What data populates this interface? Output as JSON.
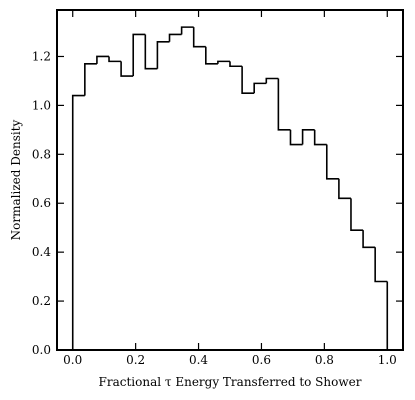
{
  "chart_data": {
    "type": "histogram",
    "xlabel": "Fractional τ Energy Transferred to Shower",
    "ylabel": "Normalized Density",
    "bins": [
      0,
      0.0385,
      0.0769,
      0.1154,
      0.1538,
      0.1923,
      0.2308,
      0.2692,
      0.3077,
      0.3462,
      0.3846,
      0.4231,
      0.4615,
      0.5,
      0.5385,
      0.5769,
      0.6154,
      0.6538,
      0.6923,
      0.7308,
      0.7692,
      0.8077,
      0.8462,
      0.8846,
      0.9231,
      0.9615,
      1
    ],
    "values": [
      1.04,
      1.17,
      1.2,
      1.18,
      1.12,
      1.29,
      1.15,
      1.26,
      1.29,
      1.32,
      1.24,
      1.17,
      1.18,
      1.16,
      1.05,
      1.09,
      1.11,
      0.9,
      0.84,
      0.9,
      0.84,
      0.7,
      0.62,
      0.49,
      0.42,
      0.28
    ],
    "color": "#000000",
    "xlim": [
      -0.05,
      1.05
    ],
    "ylim": [
      0,
      1.39
    ],
    "xticks": [
      {
        "value": 0,
        "label": "0.0"
      },
      0.2,
      0.4,
      0.6,
      0.8,
      {
        "value": 1,
        "label": "1.0"
      }
    ],
    "yticks": [
      {
        "value": 0,
        "label": "0.0"
      },
      0.2,
      0.4,
      0.6,
      0.8,
      {
        "value": 1,
        "label": "1.0"
      },
      1.2
    ]
  }
}
